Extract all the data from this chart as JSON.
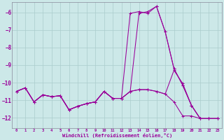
{
  "xlabel": "Windchill (Refroidissement éolien,°C)",
  "background_color": "#cce8e8",
  "grid_color": "#aacccc",
  "line_color": "#990099",
  "xlim": [
    -0.5,
    23.5
  ],
  "ylim": [
    -12.6,
    -5.4
  ],
  "yticks": [
    -12,
    -11,
    -10,
    -9,
    -8,
    -7,
    -6
  ],
  "xticks": [
    0,
    1,
    2,
    3,
    4,
    5,
    6,
    7,
    8,
    9,
    10,
    11,
    12,
    13,
    14,
    15,
    16,
    17,
    18,
    19,
    20,
    21,
    22,
    23
  ],
  "line1": [
    -10.5,
    -10.3,
    -11.1,
    -10.7,
    -10.8,
    -10.75,
    -11.55,
    -11.35,
    -11.2,
    -11.1,
    -10.5,
    -10.9,
    -10.9,
    -10.5,
    -10.4,
    -10.4,
    -10.5,
    -10.65,
    -11.1,
    -11.9,
    -11.9,
    -12.05,
    -12.05,
    -12.05
  ],
  "line2": [
    -10.5,
    -10.3,
    -11.1,
    -10.7,
    -10.8,
    -10.75,
    -11.55,
    -11.35,
    -11.2,
    -11.1,
    -10.5,
    -10.9,
    -10.9,
    -6.05,
    -5.95,
    -6.05,
    -5.65,
    -7.1,
    -9.2,
    -10.15,
    -11.3,
    -12.05,
    -12.05,
    -12.05
  ],
  "line3": [
    -10.5,
    -10.3,
    -11.1,
    -10.7,
    -10.8,
    -10.75,
    -11.55,
    -11.35,
    -11.2,
    -11.1,
    -10.5,
    -10.9,
    -10.9,
    -10.5,
    -6.05,
    -5.95,
    -5.65,
    -7.1,
    -9.2,
    -10.15,
    -11.3,
    -12.05,
    -12.05,
    -12.05
  ],
  "line4": [
    -10.5,
    -10.3,
    -11.1,
    -10.7,
    -10.8,
    -10.75,
    -11.55,
    -11.35,
    -11.2,
    -11.1,
    -10.5,
    -10.9,
    -10.9,
    -10.5,
    -10.4,
    -10.4,
    -10.5,
    -10.65,
    -9.3,
    -10.05,
    -11.3,
    -12.05,
    -12.05,
    -12.05
  ]
}
